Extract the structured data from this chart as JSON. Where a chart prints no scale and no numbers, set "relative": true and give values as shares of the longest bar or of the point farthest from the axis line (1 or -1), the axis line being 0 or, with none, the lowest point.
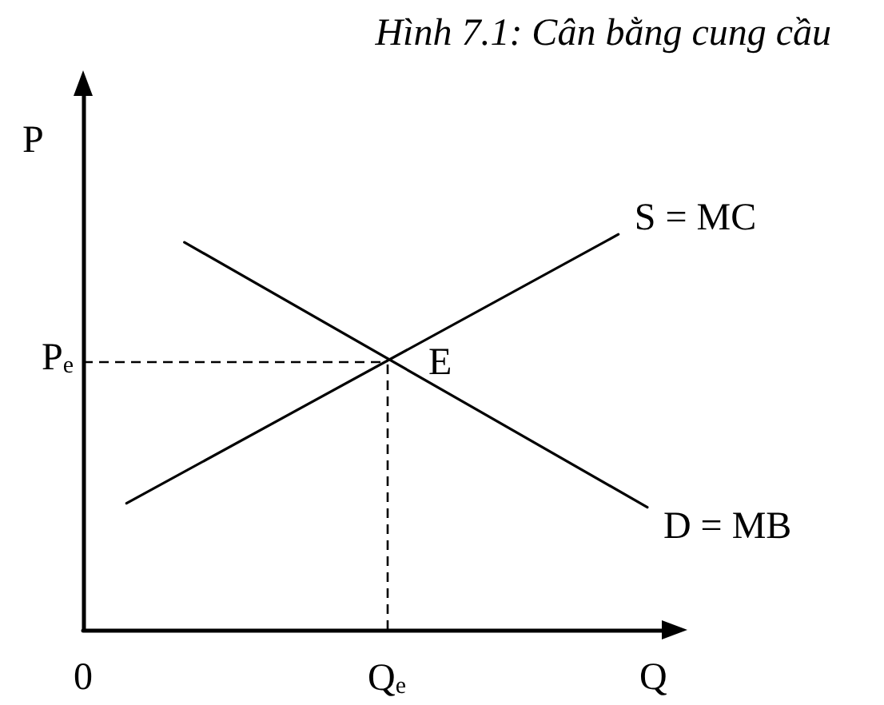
{
  "chart_data": {
    "type": "line",
    "title": "Hình 7.1: Cân bằng cung cầu",
    "xlabel": "Q",
    "ylabel": "P",
    "relative": true,
    "categories": [
      "0",
      null,
      null,
      null,
      null,
      null,
      null,
      null,
      null,
      null,
      null,
      null,
      null,
      null,
      null,
      null,
      null,
      null,
      null,
      null,
      null,
      "Q$_{e}$",
      null,
      null,
      null,
      null,
      null,
      null,
      null,
      null,
      null,
      null,
      null,
      null,
      null,
      null,
      null,
      null,
      null,
      null,
      null
    ],
    "series": [
      {
        "name": "S = MC",
        "color": "#000000",
        "values": [
          null,
          null,
          null,
          0.32,
          null,
          null,
          null,
          null,
          null,
          null,
          null,
          null,
          null,
          null,
          null,
          null,
          null,
          null,
          null,
          null,
          null,
          null,
          null,
          null,
          null,
          null,
          null,
          null,
          null,
          null,
          null,
          null,
          null,
          null,
          null,
          null,
          null,
          1.0,
          null,
          null,
          null
        ]
      },
      {
        "name": "D = MB",
        "color": "#000000",
        "values": [
          null,
          null,
          null,
          null,
          null,
          null,
          null,
          0.98,
          null,
          null,
          null,
          null,
          null,
          null,
          null,
          null,
          null,
          null,
          null,
          null,
          null,
          null,
          null,
          null,
          null,
          null,
          null,
          null,
          null,
          null,
          null,
          null,
          null,
          null,
          null,
          null,
          null,
          null,
          null,
          0.31,
          null
        ]
      }
    ],
    "ref_lines": [
      {
        "axis": "y",
        "value": 0.68,
        "label": "P$_{e}$",
        "line_style": "dashed",
        "color": "#000000"
      },
      {
        "axis": "x",
        "value": "Q$_{e}$",
        "line_style": "dashed",
        "color": "#000000"
      }
    ],
    "annotations": [
      {
        "text": "E",
        "x": "Q$_{e}$",
        "y": 0.68
      }
    ],
    "grid": false,
    "legend": false,
    "marker": "none",
    "line_style": "solid"
  }
}
